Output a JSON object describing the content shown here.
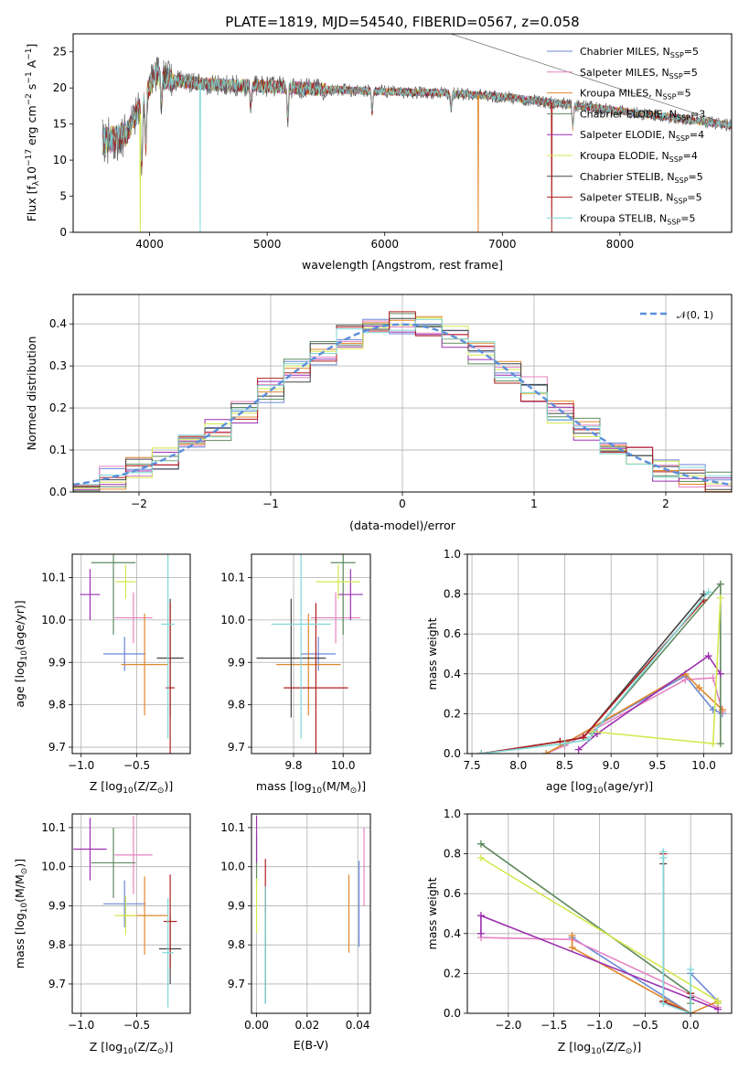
{
  "colors": {
    "Chabrier MILES": "#6b87d6",
    "Salpeter MILES": "#e683c2",
    "Kroupa MILES": "#e0882c",
    "Chabrier ELODIE": "#5f8a5f",
    "Salpeter ELODIE": "#9c2fb0",
    "Kroupa ELODIE": "#d4e84f",
    "Chabrier STELIB": "#444444",
    "Salpeter STELIB": "#b01f1f",
    "Kroupa STELIB": "#7fd7d7",
    "model_curve": "#5b8fdc",
    "grid": "#b0b0b0"
  },
  "chart_data": [
    {
      "id": "spectrum",
      "type": "line",
      "title": "PLATE=1819, MJD=54540, FIBERID=0567, z=0.058",
      "xlabel": "wavelength [Angstrom, rest frame]",
      "ylabel": "Flux [f",
      "ylabel_sub": "λ",
      "ylabel_rest": "10",
      "ylabel_exp": "−17",
      "ylabel_tail": " erg cm",
      "ylabel_exp2": "−2",
      "ylabel_tail2": " s",
      "ylabel_exp3": "−1",
      "ylabel_tail3": " A",
      "ylabel_exp4": "−1",
      "ylabel_tail4": "]",
      "xlim": [
        3350,
        8950
      ],
      "ylim": [
        0,
        27.5
      ],
      "xticks": [
        4000,
        5000,
        6000,
        7000,
        8000
      ],
      "yticks": [
        0,
        5,
        10,
        15,
        20,
        25
      ],
      "grid": false,
      "legend_position": "top-right",
      "series": [
        {
          "name": "Chabrier MILES",
          "nssp": "5"
        },
        {
          "name": "Salpeter MILES",
          "nssp": "5"
        },
        {
          "name": "Kroupa MILES",
          "nssp": "5"
        },
        {
          "name": "Chabrier ELODIE",
          "nssp": "3"
        },
        {
          "name": "Salpeter ELODIE",
          "nssp": "4"
        },
        {
          "name": "Kroupa ELODIE",
          "nssp": "4"
        },
        {
          "name": "Chabrier STELIB",
          "nssp": "5"
        },
        {
          "name": "Salpeter STELIB",
          "nssp": "5"
        },
        {
          "name": "Kroupa STELIB",
          "nssp": "5"
        }
      ],
      "nssp_prefix": "N",
      "nssp_sub": "SSP",
      "data_range": [
        3600,
        8950
      ],
      "continuum_anchors": {
        "x": [
          3600,
          3800,
          3950,
          4050,
          4200,
          4500,
          5000,
          5500,
          6000,
          6500,
          7000,
          7500,
          8000,
          8500,
          8950
        ],
        "y": [
          12.5,
          13.5,
          18.5,
          22.0,
          21.0,
          20.5,
          20.2,
          19.8,
          19.5,
          19.3,
          18.8,
          17.8,
          16.8,
          15.8,
          14.8
        ]
      },
      "absorption_features": {
        "x": [
          3933,
          3968,
          4101,
          4861,
          5175,
          5893,
          6563,
          7600
        ],
        "depth": [
          9,
          7,
          4,
          3,
          4,
          3,
          2,
          3
        ]
      },
      "spikes": {
        "x": [
          3920,
          4430,
          6795,
          7420
        ],
        "y": [
          0,
          0,
          0,
          0
        ]
      }
    },
    {
      "id": "residuals",
      "type": "histogram",
      "xlabel": "(data-model)/error",
      "ylabel": "Normed distribution",
      "xlim": [
        -2.5,
        2.5
      ],
      "ylim": [
        0,
        0.47
      ],
      "xticks": [
        -2,
        -1,
        0,
        1,
        2
      ],
      "yticks": [
        0.0,
        0.1,
        0.2,
        0.3,
        0.4
      ],
      "grid": true,
      "legend_position": "top-right",
      "bin_edges": [
        -2.5,
        -2.3,
        -2.1,
        -1.9,
        -1.7,
        -1.5,
        -1.3,
        -1.1,
        -0.9,
        -0.7,
        -0.5,
        -0.3,
        -0.1,
        0.1,
        0.3,
        0.5,
        0.7,
        0.9,
        1.1,
        1.3,
        1.5,
        1.7,
        1.9,
        2.1,
        2.3,
        2.5
      ],
      "model_label": "𝒩(0, 1)",
      "model_mean": 0,
      "model_sigma": 1
    },
    {
      "id": "age_vs_Z",
      "type": "errorbar",
      "xlabel": "Z [log",
      "xlabel_sub": "10",
      "xlabel_tail": "(Z/Z",
      "xlabel_sub2": "⊙",
      "xlabel_tail2": ")]",
      "ylabel": "age  [log",
      "ylabel_sub": "10",
      "ylabel_tail": "(age/yr)]",
      "xlim": [
        -1.08,
        -0.02
      ],
      "ylim": [
        9.685,
        10.155
      ],
      "xticks": [
        -1.0,
        -0.5
      ],
      "yticks": [
        9.7,
        9.8,
        9.9,
        10.0,
        10.1
      ],
      "grid": true,
      "points": [
        {
          "series": "Chabrier MILES",
          "x": -0.61,
          "xerr": 0.19,
          "y": 9.92,
          "yerr": 0.04
        },
        {
          "series": "Salpeter MILES",
          "x": -0.53,
          "xerr": 0.17,
          "y": 10.005,
          "yerr": 0.06
        },
        {
          "series": "Kroupa MILES",
          "x": -0.43,
          "xerr": 0.21,
          "y": 9.895,
          "yerr": 0.12
        },
        {
          "series": "Chabrier ELODIE",
          "x": -0.71,
          "xerr": 0.2,
          "y": 10.135,
          "yerr": 0.17
        },
        {
          "series": "Salpeter ELODIE",
          "x": -0.92,
          "xerr": 0.09,
          "y": 10.06,
          "yerr": 0.06
        },
        {
          "series": "Kroupa ELODIE",
          "x": -0.6,
          "xerr": 0.09,
          "y": 10.09,
          "yerr": 0.04
        },
        {
          "series": "Chabrier STELIB",
          "x": -0.2,
          "xerr": 0.12,
          "y": 9.91,
          "yerr": 0.14
        },
        {
          "series": "Salpeter STELIB",
          "x": -0.2,
          "xerr": 0.04,
          "y": 9.84,
          "yerr": 0.2
        },
        {
          "series": "Kroupa STELIB",
          "x": -0.22,
          "xerr": 0.06,
          "y": 9.99,
          "yerr": 0.27
        }
      ]
    },
    {
      "id": "age_vs_mass",
      "type": "errorbar",
      "xlabel": "mass [log",
      "xlabel_sub": "10",
      "xlabel_tail": "(M/M",
      "xlabel_sub2": "⊙",
      "xlabel_tail2": ")]",
      "xlim": [
        9.63,
        10.11
      ],
      "ylim": [
        9.685,
        10.155
      ],
      "xticks": [
        9.8,
        10.0
      ],
      "yticks": [
        9.7,
        9.8,
        9.9,
        10.0,
        10.1
      ],
      "grid": true,
      "points": [
        {
          "series": "Chabrier MILES",
          "x": 9.9,
          "xerr": 0.07,
          "y": 9.92,
          "yerr": 0.04
        },
        {
          "series": "Salpeter MILES",
          "x": 9.97,
          "xerr": 0.1,
          "y": 10.005,
          "yerr": 0.06
        },
        {
          "series": "Kroupa MILES",
          "x": 9.86,
          "xerr": 0.13,
          "y": 9.895,
          "yerr": 0.12
        },
        {
          "series": "Chabrier ELODIE",
          "x": 10.0,
          "xerr": 0.05,
          "y": 10.135,
          "yerr": 0.17
        },
        {
          "series": "Salpeter ELODIE",
          "x": 10.03,
          "xerr": 0.05,
          "y": 10.06,
          "yerr": 0.06
        },
        {
          "series": "Kroupa ELODIE",
          "x": 9.98,
          "xerr": 0.09,
          "y": 10.09,
          "yerr": 0.04
        },
        {
          "series": "Chabrier STELIB",
          "x": 9.79,
          "xerr": 0.14,
          "y": 9.91,
          "yerr": 0.14
        },
        {
          "series": "Salpeter STELIB",
          "x": 9.89,
          "xerr": 0.13,
          "y": 9.84,
          "yerr": 0.2
        },
        {
          "series": "Kroupa STELIB",
          "x": 9.83,
          "xerr": 0.12,
          "y": 9.99,
          "yerr": 0.27
        }
      ]
    },
    {
      "id": "weight_vs_age",
      "type": "line",
      "xlabel": "age  [log",
      "xlabel_sub": "10",
      "xlabel_tail": "(age/yr)]",
      "ylabel": "mass weight",
      "xlim": [
        7.45,
        10.3
      ],
      "ylim": [
        0,
        1.0
      ],
      "xticks": [
        7.5,
        8.0,
        8.5,
        9.0,
        9.5,
        10.0
      ],
      "yticks": [
        0.0,
        0.2,
        0.4,
        0.6,
        0.8,
        1.0
      ],
      "grid": true,
      "series": [
        {
          "name": "Chabrier MILES",
          "x": [
            8.3,
            8.5,
            9.8,
            10.1,
            10.2
          ],
          "y": [
            0.0,
            0.05,
            0.39,
            0.22,
            0.2
          ]
        },
        {
          "name": "Salpeter MILES",
          "x": [
            8.3,
            8.5,
            9.8,
            10.1,
            10.2
          ],
          "y": [
            0.0,
            0.04,
            0.37,
            0.38,
            0.21
          ]
        },
        {
          "name": "Kroupa MILES",
          "x": [
            8.3,
            8.5,
            9.8,
            9.95,
            10.2
          ],
          "y": [
            0.0,
            0.05,
            0.4,
            0.33,
            0.22
          ]
        },
        {
          "name": "Chabrier ELODIE",
          "x": [
            8.8,
            10.18,
            10.18
          ],
          "y": [
            0.1,
            0.85,
            0.05
          ]
        },
        {
          "name": "Salpeter ELODIE",
          "x": [
            8.65,
            8.85,
            10.05,
            10.18
          ],
          "y": [
            0.02,
            0.1,
            0.49,
            0.4
          ]
        },
        {
          "name": "Kroupa ELODIE",
          "x": [
            8.8,
            10.1,
            10.18
          ],
          "y": [
            0.11,
            0.05,
            0.78
          ]
        },
        {
          "name": "Chabrier STELIB",
          "x": [
            7.6,
            8.45,
            8.7,
            10.0
          ],
          "y": [
            0.0,
            0.06,
            0.08,
            0.8
          ]
        },
        {
          "name": "Salpeter STELIB",
          "x": [
            7.6,
            8.45,
            8.7,
            10.0
          ],
          "y": [
            0.0,
            0.06,
            0.08,
            0.77
          ]
        },
        {
          "name": "Kroupa STELIB",
          "x": [
            7.6,
            8.5,
            8.75,
            10.05
          ],
          "y": [
            0.0,
            0.05,
            0.07,
            0.81
          ]
        }
      ]
    },
    {
      "id": "mass_vs_Z",
      "type": "errorbar",
      "xlabel": "Z [log",
      "xlabel_sub": "10",
      "xlabel_tail": "(Z/Z",
      "xlabel_sub2": "⊙",
      "xlabel_tail2": ")]",
      "ylabel": "mass [log",
      "ylabel_sub": "10",
      "ylabel_tail": "(M/M",
      "ylabel_sub2": "⊙",
      "ylabel_tail2": ")]",
      "xlim": [
        -1.08,
        -0.02
      ],
      "ylim": [
        9.625,
        10.135
      ],
      "xticks": [
        -1.0,
        -0.5
      ],
      "yticks": [
        9.7,
        9.8,
        9.9,
        10.0,
        10.1
      ],
      "grid": true,
      "points": [
        {
          "series": "Chabrier MILES",
          "x": -0.61,
          "xerr": 0.19,
          "y": 9.905,
          "yerr": 0.06
        },
        {
          "series": "Salpeter MILES",
          "x": -0.53,
          "xerr": 0.17,
          "y": 10.03,
          "yerr": 0.1
        },
        {
          "series": "Kroupa MILES",
          "x": -0.43,
          "xerr": 0.21,
          "y": 9.875,
          "yerr": 0.1
        },
        {
          "series": "Chabrier ELODIE",
          "x": -0.71,
          "xerr": 0.2,
          "y": 10.01,
          "yerr": 0.09
        },
        {
          "series": "Salpeter ELODIE",
          "x": -0.92,
          "xerr": 0.15,
          "y": 10.045,
          "yerr": 0.08
        },
        {
          "series": "Kroupa ELODIE",
          "x": -0.6,
          "xerr": 0.1,
          "y": 9.875,
          "yerr": 0.05
        },
        {
          "series": "Chabrier STELIB",
          "x": -0.2,
          "xerr": 0.1,
          "y": 9.79,
          "yerr": 0.09
        },
        {
          "series": "Salpeter STELIB",
          "x": -0.2,
          "xerr": 0.06,
          "y": 9.86,
          "yerr": 0.12
        },
        {
          "series": "Kroupa STELIB",
          "x": -0.22,
          "xerr": 0.05,
          "y": 9.78,
          "yerr": 0.14
        }
      ]
    },
    {
      "id": "mass_vs_EBV",
      "type": "errorbar",
      "xlabel": "E(B-V)",
      "xlim": [
        -0.002,
        0.045
      ],
      "ylim": [
        9.625,
        10.135
      ],
      "xticks": [
        0.0,
        0.02,
        0.04
      ],
      "yticks": [
        9.7,
        9.8,
        9.9,
        10.0,
        10.1
      ],
      "grid": true,
      "points": [
        {
          "series": "Chabrier MILES",
          "x": 0.0405,
          "xerr": 0,
          "y": 9.905,
          "yerr": 0.11
        },
        {
          "series": "Salpeter MILES",
          "x": 0.0425,
          "xerr": 0,
          "y": 10.0,
          "yerr": 0.1
        },
        {
          "series": "Kroupa MILES",
          "x": 0.0365,
          "xerr": 0,
          "y": 9.88,
          "yerr": 0.1
        },
        {
          "series": "Chabrier ELODIE",
          "x": 0.0,
          "xerr": 0,
          "y": 10.02,
          "yerr": 0.06
        },
        {
          "series": "Salpeter ELODIE",
          "x": 0.0,
          "xerr": 0,
          "y": 10.07,
          "yerr": 0.06
        },
        {
          "series": "Kroupa ELODIE",
          "x": 0.0,
          "xerr": 0,
          "y": 9.9,
          "yerr": 0.07
        },
        {
          "series": "Chabrier STELIB",
          "x": 0.0035,
          "xerr": 0,
          "y": 9.8,
          "yerr": 0.15
        },
        {
          "series": "Salpeter STELIB",
          "x": 0.0035,
          "xerr": 0,
          "y": 9.95,
          "yerr": 0.07
        },
        {
          "series": "Kroupa STELIB",
          "x": 0.0035,
          "xerr": 0,
          "y": 9.8,
          "yerr": 0.15
        }
      ]
    },
    {
      "id": "weight_vs_Z",
      "type": "line",
      "xlabel": "Z [log",
      "xlabel_sub": "10",
      "xlabel_tail": "(Z/Z",
      "xlabel_sub2": "⊙",
      "xlabel_tail2": ")]",
      "ylabel": "mass weight",
      "xlim": [
        -2.45,
        0.45
      ],
      "ylim": [
        0,
        1.0
      ],
      "xticks": [
        -2.0,
        -1.5,
        -1.0,
        -0.5,
        0.0
      ],
      "yticks": [
        0.0,
        0.2,
        0.4,
        0.6,
        0.8,
        1.0
      ],
      "grid": true,
      "series": [
        {
          "name": "Chabrier MILES",
          "x": [
            -1.3,
            0.0,
            0.0,
            0.3
          ],
          "y": [
            0.38,
            0.0,
            0.2,
            0.06
          ]
        },
        {
          "name": "Salpeter MILES",
          "x": [
            -2.3,
            -1.3,
            0.3
          ],
          "y": [
            0.38,
            0.37,
            0.03
          ]
        },
        {
          "name": "Kroupa MILES",
          "x": [
            -1.3,
            -1.3,
            0.0,
            0.3
          ],
          "y": [
            0.39,
            0.33,
            0.0,
            0.06
          ]
        },
        {
          "name": "Chabrier ELODIE",
          "x": [
            -2.3,
            0.0,
            0.0
          ],
          "y": [
            0.85,
            0.1,
            0.05
          ]
        },
        {
          "name": "Salpeter ELODIE",
          "x": [
            -2.3,
            -2.3,
            0.3,
            0.3
          ],
          "y": [
            0.4,
            0.49,
            0.02,
            0.05
          ]
        },
        {
          "name": "Kroupa ELODIE",
          "x": [
            -2.3,
            0.3,
            0.3
          ],
          "y": [
            0.78,
            0.06,
            0.05
          ]
        },
        {
          "name": "Chabrier STELIB",
          "x": [
            -0.3,
            -0.3,
            0.0,
            0.0
          ],
          "y": [
            0.75,
            0.06,
            0.0,
            0.08
          ]
        },
        {
          "name": "Salpeter STELIB",
          "x": [
            -0.3,
            -0.3,
            0.0,
            0.0
          ],
          "y": [
            0.8,
            0.06,
            0.0,
            0.1
          ]
        },
        {
          "name": "Kroupa STELIB",
          "x": [
            -0.3,
            -0.3,
            -0.3,
            0.0,
            0.0
          ],
          "y": [
            0.81,
            0.78,
            0.05,
            0.0,
            0.22
          ]
        }
      ]
    }
  ]
}
